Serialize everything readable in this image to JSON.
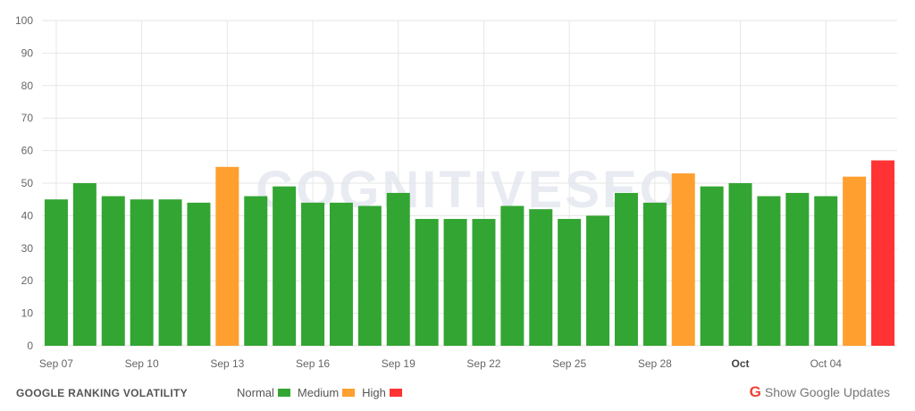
{
  "chart_data": {
    "type": "bar",
    "title": "",
    "xlabel": "",
    "ylabel": "",
    "ylim": [
      0,
      100
    ],
    "yticks": [
      0,
      10,
      20,
      30,
      40,
      50,
      60,
      70,
      80,
      90,
      100
    ],
    "categories": [
      "Sep 07",
      "Sep 08",
      "Sep 09",
      "Sep 10",
      "Sep 11",
      "Sep 12",
      "Sep 13",
      "Sep 14",
      "Sep 15",
      "Sep 16",
      "Sep 17",
      "Sep 18",
      "Sep 19",
      "Sep 20",
      "Sep 21",
      "Sep 22",
      "Sep 23",
      "Sep 24",
      "Sep 25",
      "Sep 26",
      "Sep 27",
      "Sep 28",
      "Sep 29",
      "Sep 30",
      "Oct 01",
      "Oct 02",
      "Oct 03",
      "Oct 04",
      "Oct 05",
      "Oct 06"
    ],
    "values": [
      45,
      50,
      46,
      45,
      45,
      44,
      55,
      46,
      49,
      44,
      44,
      43,
      47,
      39,
      39,
      39,
      43,
      42,
      39,
      40,
      47,
      44,
      53,
      49,
      50,
      46,
      47,
      46,
      52,
      57
    ],
    "levels": [
      "normal",
      "normal",
      "normal",
      "normal",
      "normal",
      "normal",
      "medium",
      "normal",
      "normal",
      "normal",
      "normal",
      "normal",
      "normal",
      "normal",
      "normal",
      "normal",
      "normal",
      "normal",
      "normal",
      "normal",
      "normal",
      "normal",
      "medium",
      "normal",
      "normal",
      "normal",
      "normal",
      "normal",
      "medium",
      "high"
    ],
    "x_tick_labels": [
      {
        "index": 0,
        "label": "Sep 07"
      },
      {
        "index": 3,
        "label": "Sep 10"
      },
      {
        "index": 6,
        "label": "Sep 13"
      },
      {
        "index": 9,
        "label": "Sep 16"
      },
      {
        "index": 12,
        "label": "Sep 19"
      },
      {
        "index": 15,
        "label": "Sep 22"
      },
      {
        "index": 18,
        "label": "Sep 25"
      },
      {
        "index": 21,
        "label": "Sep 28"
      },
      {
        "index": 24,
        "label": "Oct",
        "bold": true
      },
      {
        "index": 27,
        "label": "Oct 04"
      }
    ],
    "grid": true,
    "legend": [
      {
        "name": "Normal",
        "level": "normal"
      },
      {
        "name": "Medium",
        "level": "medium"
      },
      {
        "name": "High",
        "level": "high"
      }
    ],
    "legend_position": "bottom"
  },
  "colors": {
    "normal": "#33a532",
    "medium": "#ff9f2f",
    "high": "#ff3333",
    "google": "#ea4335"
  },
  "watermark": "COGNITIVESEO",
  "footer": {
    "title": "GOOGLE RANKING VOLATILITY",
    "updates_icon": "G",
    "updates_label": "Show Google Updates"
  }
}
